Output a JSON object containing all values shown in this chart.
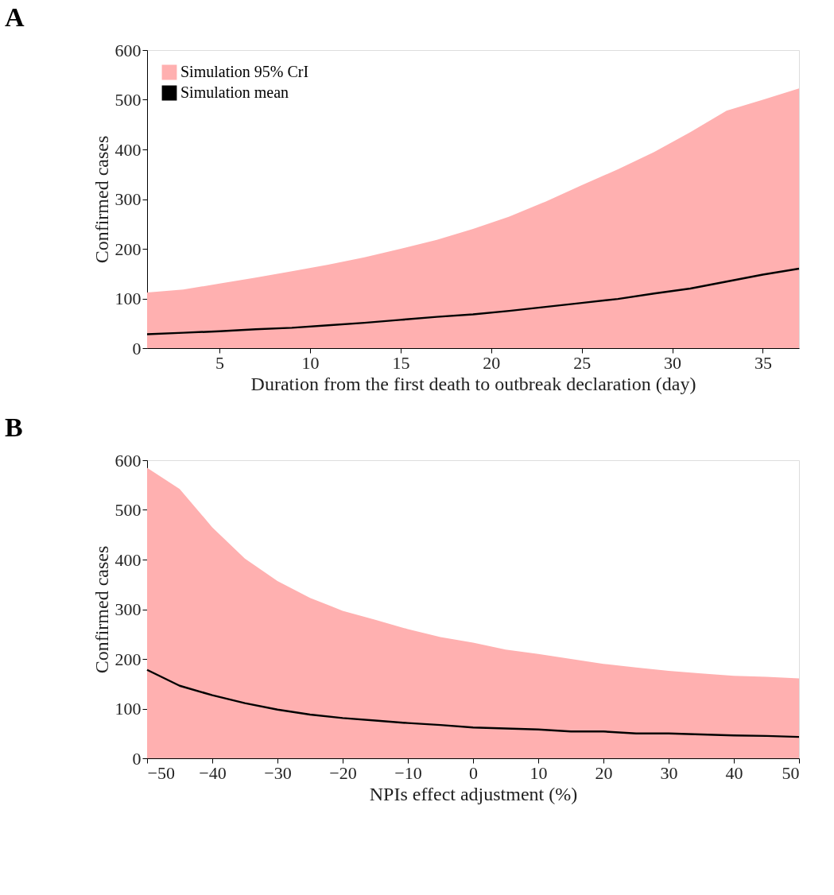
{
  "chart_data": [
    {
      "type": "line",
      "title": "A",
      "xlabel": "Duration from the first death to outbreak declaration (day)",
      "ylabel": "Confirmed cases",
      "xlim": [
        1,
        37
      ],
      "xticks": [
        5,
        10,
        15,
        20,
        25,
        30,
        35
      ],
      "ylim": [
        0,
        600
      ],
      "yticks": [
        0,
        100,
        200,
        300,
        400,
        500,
        600
      ],
      "grid": false,
      "legend": "top left",
      "line_style": "solid",
      "marker": "none",
      "x": [
        1,
        3,
        5,
        7,
        9,
        11,
        13,
        15,
        17,
        19,
        21,
        23,
        25,
        27,
        29,
        31,
        33,
        35,
        37
      ],
      "series": [
        {
          "type": "area",
          "name": "Simulation 95% CrI",
          "color": "#ffb0b0",
          "values": [
            112,
            118,
            130,
            142,
            155,
            168,
            183,
            200,
            218,
            240,
            265,
            295,
            328,
            360,
            395,
            435,
            478,
            500,
            523
          ]
        },
        {
          "name": "Simulation mean",
          "color": "#000000",
          "values": [
            28,
            31,
            34,
            38,
            41,
            46,
            51,
            57,
            63,
            68,
            75,
            83,
            91,
            99,
            110,
            120,
            134,
            148,
            160
          ]
        }
      ]
    },
    {
      "type": "line",
      "title": "B",
      "xlabel": "NPIs effect adjustment (%)",
      "ylabel": "Confirmed cases",
      "xlim": [
        -50,
        50
      ],
      "xticks": [
        -50,
        -40,
        -30,
        -20,
        -10,
        0,
        10,
        20,
        30,
        40,
        50
      ],
      "ylim": [
        0,
        600
      ],
      "yticks": [
        0,
        100,
        200,
        300,
        400,
        500,
        600
      ],
      "grid": false,
      "legend": false,
      "line_style": "solid",
      "marker": "none",
      "x": [
        -50,
        -45,
        -40,
        -35,
        -30,
        -25,
        -20,
        -15,
        -10,
        -5,
        0,
        5,
        10,
        15,
        20,
        25,
        30,
        35,
        40,
        45,
        50
      ],
      "series": [
        {
          "type": "area",
          "color": "#ffb0b0",
          "values": [
            585,
            542,
            465,
            402,
            357,
            323,
            297,
            279,
            260,
            244,
            233,
            219,
            210,
            200,
            190,
            183,
            176,
            171,
            166,
            164,
            161
          ]
        },
        {
          "color": "#000000",
          "values": [
            178,
            146,
            127,
            111,
            98,
            88,
            81,
            76,
            71,
            67,
            62,
            60,
            58,
            54,
            54,
            50,
            50,
            48,
            46,
            45,
            43
          ]
        }
      ]
    }
  ]
}
